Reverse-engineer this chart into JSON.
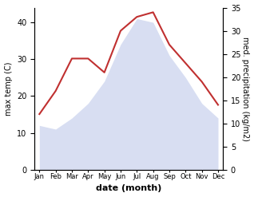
{
  "months": [
    "Jan",
    "Feb",
    "Mar",
    "Apr",
    "May",
    "Jun",
    "Jul",
    "Aug",
    "Sep",
    "Oct",
    "Nov",
    "Dec"
  ],
  "month_indices": [
    0,
    1,
    2,
    3,
    4,
    5,
    6,
    7,
    8,
    9,
    10,
    11
  ],
  "max_temp": [
    12,
    11,
    14,
    18,
    24,
    34,
    41,
    40,
    31,
    25,
    18,
    14
  ],
  "precipitation": [
    12,
    17,
    24,
    24,
    21,
    30,
    33,
    34,
    27,
    23,
    19,
    14
  ],
  "temp_fill_color": "#b8c4e8",
  "temp_fill_alpha": 0.55,
  "precip_color": "#c03030",
  "left_ylabel": "max temp (C)",
  "right_ylabel": "med. precipitation (kg/m2)",
  "xlabel": "date (month)",
  "left_ylim": [
    0,
    44
  ],
  "right_ylim": [
    0,
    35
  ],
  "left_yticks": [
    0,
    10,
    20,
    30,
    40
  ],
  "right_yticks": [
    0,
    5,
    10,
    15,
    20,
    25,
    30,
    35
  ],
  "background_color": "#ffffff",
  "precip_linewidth": 1.5,
  "label_fontsize": 7,
  "tick_fontsize": 7,
  "xlabel_fontsize": 8
}
